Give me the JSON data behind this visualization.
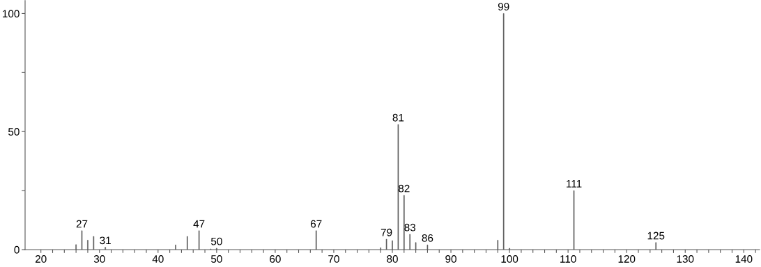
{
  "chart_data": {
    "type": "bar",
    "x": [
      26,
      27,
      28,
      29,
      31,
      43,
      45,
      47,
      49,
      50,
      67,
      78,
      79,
      80,
      81,
      82,
      83,
      84,
      86,
      98,
      99,
      100,
      111,
      125
    ],
    "values": [
      2.1,
      8,
      4,
      5.6,
      1,
      2,
      5.6,
      8,
      0.3,
      0.6,
      8,
      0.8,
      4.4,
      3.8,
      53,
      23,
      6.5,
      3,
      2,
      4,
      100,
      0.6,
      25,
      3
    ],
    "annotations": [
      {
        "text": "27",
        "x": 27,
        "y": 8
      },
      {
        "text": "31",
        "x": 31,
        "y": 1
      },
      {
        "text": "47",
        "x": 47,
        "y": 8
      },
      {
        "text": "50",
        "x": 50,
        "y": 0.6
      },
      {
        "text": "67",
        "x": 67,
        "y": 8
      },
      {
        "text": "79",
        "x": 79,
        "y": 4.4
      },
      {
        "text": "81",
        "x": 81,
        "y": 53
      },
      {
        "text": "82",
        "x": 82,
        "y": 23
      },
      {
        "text": "83",
        "x": 83,
        "y": 6.5
      },
      {
        "text": "86",
        "x": 86,
        "y": 2
      },
      {
        "text": "99",
        "x": 99,
        "y": 100
      },
      {
        "text": "111",
        "x": 111,
        "y": 25
      },
      {
        "text": "125",
        "x": 125,
        "y": 3
      }
    ],
    "color": "#555555",
    "xlim": [
      17.3,
      142.7
    ],
    "ylim": [
      0,
      105.5
    ],
    "xticks": [
      20,
      {
        "value": 22,
        "label": null
      },
      {
        "value": 24,
        "label": null
      },
      {
        "value": 26,
        "label": null
      },
      {
        "value": 28,
        "label": null
      },
      30,
      {
        "value": 32,
        "label": null
      },
      {
        "value": 34,
        "label": null
      },
      {
        "value": 36,
        "label": null
      },
      {
        "value": 38,
        "label": null
      },
      40,
      {
        "value": 42,
        "label": null
      },
      {
        "value": 44,
        "label": null
      },
      {
        "value": 46,
        "label": null
      },
      {
        "value": 48,
        "label": null
      },
      50,
      {
        "value": 52,
        "label": null
      },
      {
        "value": 54,
        "label": null
      },
      {
        "value": 56,
        "label": null
      },
      {
        "value": 58,
        "label": null
      },
      60,
      {
        "value": 62,
        "label": null
      },
      {
        "value": 64,
        "label": null
      },
      {
        "value": 66,
        "label": null
      },
      {
        "value": 68,
        "label": null
      },
      70,
      {
        "value": 72,
        "label": null
      },
      {
        "value": 74,
        "label": null
      },
      {
        "value": 76,
        "label": null
      },
      {
        "value": 78,
        "label": null
      },
      80,
      {
        "value": 82,
        "label": null
      },
      {
        "value": 84,
        "label": null
      },
      {
        "value": 86,
        "label": null
      },
      {
        "value": 88,
        "label": null
      },
      90,
      {
        "value": 92,
        "label": null
      },
      {
        "value": 94,
        "label": null
      },
      {
        "value": 96,
        "label": null
      },
      {
        "value": 98,
        "label": null
      },
      100,
      {
        "value": 102,
        "label": null
      },
      {
        "value": 104,
        "label": null
      },
      {
        "value": 106,
        "label": null
      },
      {
        "value": 108,
        "label": null
      },
      110,
      {
        "value": 112,
        "label": null
      },
      {
        "value": 114,
        "label": null
      },
      {
        "value": 116,
        "label": null
      },
      {
        "value": 118,
        "label": null
      },
      120,
      {
        "value": 122,
        "label": null
      },
      {
        "value": 124,
        "label": null
      },
      {
        "value": 126,
        "label": null
      },
      {
        "value": 128,
        "label": null
      },
      130,
      {
        "value": 132,
        "label": null
      },
      {
        "value": 134,
        "label": null
      },
      {
        "value": 136,
        "label": null
      },
      {
        "value": 138,
        "label": null
      },
      140,
      {
        "value": 142,
        "label": null
      }
    ],
    "yticks": [
      0,
      {
        "value": 25,
        "label": null
      },
      50,
      {
        "value": 75,
        "label": null
      },
      100
    ],
    "grid": false,
    "legend": false
  }
}
